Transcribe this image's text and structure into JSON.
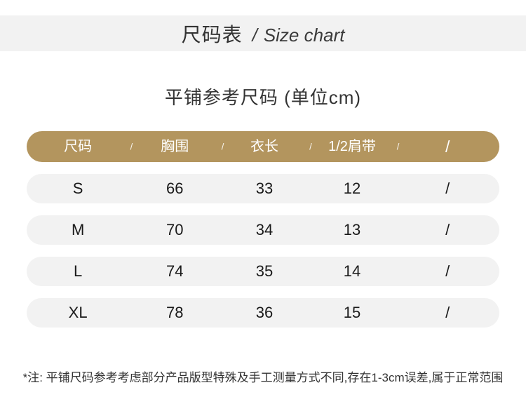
{
  "header_band": {
    "title_zh": "尺码表",
    "divider": "/",
    "title_en": "Size chart"
  },
  "subtitle": "平铺参考尺码 (单位cm)",
  "size_table": {
    "separator": "/",
    "columns": [
      "尺码",
      "胸围",
      "衣长",
      "1/2肩带",
      "/"
    ],
    "rows": [
      [
        "S",
        "66",
        "33",
        "12",
        "/"
      ],
      [
        "M",
        "70",
        "34",
        "13",
        "/"
      ],
      [
        "L",
        "74",
        "35",
        "14",
        "/"
      ],
      [
        "XL",
        "78",
        "36",
        "15",
        "/"
      ]
    ]
  },
  "note": "*注: 平铺尺码参考考虑部分产品版型特殊及手工测量方式不同,存在1-3cm误差,属于正常范围",
  "colors": {
    "accent_gold": "#b3955e",
    "row_gray": "#f2f2f2",
    "band_gray": "#f2f2f2"
  }
}
